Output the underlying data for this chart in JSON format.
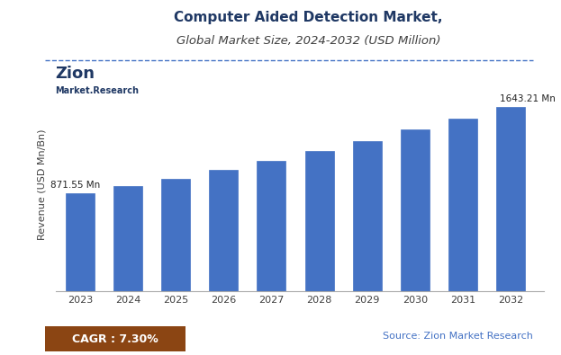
{
  "title_line1": "Computer Aided Detection Market,",
  "title_line2": "Global Market Size, 2024-2032 (USD Million)",
  "years": [
    2023,
    2024,
    2025,
    2026,
    2027,
    2028,
    2029,
    2030,
    2031,
    2032
  ],
  "values": [
    871.55,
    936.0,
    1005.0,
    1080.0,
    1160.0,
    1246.0,
    1340.0,
    1441.0,
    1540.0,
    1643.21
  ],
  "bar_color": "#4472C4",
  "bar_edge_color": "#4472C4",
  "ylabel": "Revenue (USD Mn/Bn)",
  "first_bar_label": "871.55 Mn",
  "last_bar_label": "1643.21 Mn",
  "cagr_text": "CAGR : 7.30%",
  "cagr_bg_color": "#8B4513",
  "cagr_text_color": "#FFFFFF",
  "source_text": "Source: Zion Market Research",
  "source_text_color": "#4472C4",
  "title_color": "#1F3864",
  "subtitle_color": "#404040",
  "ylabel_color": "#404040",
  "background_color": "#FFFFFF",
  "plot_bg_color": "#FFFFFF",
  "ylim": [
    0,
    1900
  ],
  "dashed_line_color": "#4472C4",
  "tick_label_color": "#404040"
}
